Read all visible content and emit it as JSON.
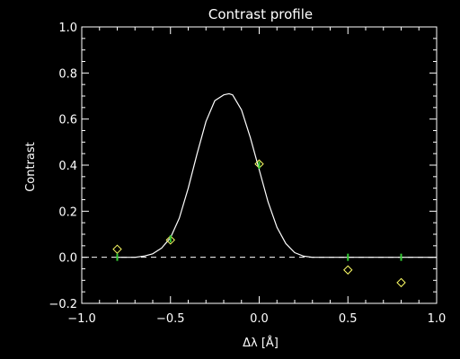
{
  "chart_data": {
    "type": "line",
    "title": "Contrast profile",
    "xlabel": "Δλ [Å]",
    "ylabel": "Contrast",
    "xlim": [
      -1.0,
      1.0
    ],
    "ylim": [
      -0.2,
      1.0
    ],
    "xticks": [
      "−1.0",
      "−0.5",
      "0.0",
      "0.5",
      "1.0"
    ],
    "yticks": [
      "−0.2",
      "0.0",
      "0.2",
      "0.4",
      "0.6",
      "0.8",
      "1.0"
    ],
    "xtick_values": [
      -1.0,
      -0.5,
      0.0,
      0.5,
      1.0
    ],
    "ytick_values": [
      -0.2,
      0.0,
      0.2,
      0.4,
      0.6,
      0.8,
      1.0
    ],
    "colors": {
      "background": "#000000",
      "axes": "#ffffff",
      "curve": "#ffffff",
      "observed": "#ffff66",
      "fitted": "#33cc33"
    },
    "series": [
      {
        "kind": "curve",
        "x": [
          -0.8,
          -0.7,
          -0.65,
          -0.6,
          -0.55,
          -0.5,
          -0.45,
          -0.4,
          -0.35,
          -0.3,
          -0.25,
          -0.2,
          -0.17,
          -0.15,
          -0.1,
          -0.05,
          0.0,
          0.05,
          0.1,
          0.15,
          0.2,
          0.25,
          0.3,
          0.35,
          0.4,
          0.5,
          0.8,
          1.0
        ],
        "y": [
          0.0,
          0.0,
          0.005,
          0.015,
          0.04,
          0.085,
          0.17,
          0.3,
          0.45,
          0.59,
          0.68,
          0.705,
          0.71,
          0.705,
          0.64,
          0.52,
          0.38,
          0.24,
          0.13,
          0.06,
          0.02,
          0.005,
          0.0,
          0.0,
          0.0,
          0.0,
          0.0,
          0.0
        ]
      },
      {
        "kind": "observed",
        "x": [
          -0.8,
          -0.5,
          0.0,
          0.5,
          0.8
        ],
        "y": [
          0.035,
          0.075,
          0.405,
          -0.055,
          -0.11
        ]
      },
      {
        "kind": "fitted",
        "x": [
          -0.8,
          -0.5,
          0.0,
          0.5,
          0.8
        ],
        "y": [
          0.0,
          0.08,
          0.4,
          0.0,
          0.0
        ]
      }
    ],
    "reference_line": {
      "y": 0.0,
      "style": "dashed"
    }
  }
}
